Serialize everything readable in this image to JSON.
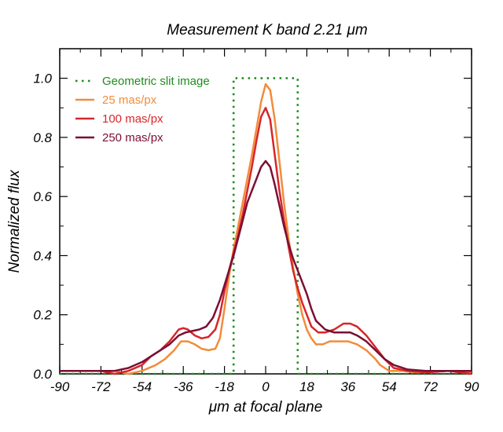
{
  "chart_data": {
    "type": "line",
    "title": "Measurement   K band    2.21 μm",
    "xlabel": "μm at focal plane",
    "ylabel": "Normalized flux",
    "xlim": [
      -90,
      90
    ],
    "ylim": [
      0,
      1.1
    ],
    "x_ticks": [
      -90,
      -72,
      -54,
      -36,
      -18,
      0,
      18,
      36,
      54,
      72,
      90
    ],
    "y_ticks": [
      0.0,
      0.2,
      0.4,
      0.6,
      0.8,
      1.0
    ],
    "x_tick_labels": [
      "-90",
      "-72",
      "-54",
      "-36",
      "-18",
      "0",
      "18",
      "36",
      "54",
      "72",
      "90"
    ],
    "y_tick_labels": [
      "0.0",
      "0.2",
      "0.4",
      "0.6",
      "0.8",
      "1.0"
    ],
    "legend_position": "top-left",
    "series": [
      {
        "name": "Geometric slit image",
        "color": "#1e8c1e",
        "style": "dotted",
        "x": [
          -90,
          -14,
          -14,
          14,
          14,
          90
        ],
        "y": [
          0,
          0,
          1.0,
          1.0,
          0,
          0
        ]
      },
      {
        "name": "25 mas/px",
        "color": "#f28c3a",
        "style": "solid",
        "x": [
          -90,
          -80,
          -72,
          -66,
          -60,
          -54,
          -48,
          -44,
          -40,
          -37,
          -34,
          -31,
          -28,
          -25,
          -22,
          -20,
          -18,
          -16,
          -14,
          -12,
          -10,
          -8,
          -6,
          -4,
          -2,
          0,
          2,
          4,
          6,
          8,
          10,
          12,
          14,
          16,
          18,
          20,
          22,
          25,
          28,
          31,
          34,
          36,
          40,
          44,
          48,
          50,
          54,
          60,
          66,
          72,
          80,
          90
        ],
        "y": [
          0.01,
          0.01,
          0.01,
          0.01,
          0.0,
          0.01,
          0.03,
          0.05,
          0.08,
          0.11,
          0.11,
          0.1,
          0.085,
          0.08,
          0.085,
          0.12,
          0.22,
          0.33,
          0.42,
          0.5,
          0.58,
          0.66,
          0.74,
          0.83,
          0.92,
          0.98,
          0.96,
          0.86,
          0.72,
          0.58,
          0.46,
          0.36,
          0.27,
          0.2,
          0.15,
          0.12,
          0.1,
          0.1,
          0.11,
          0.11,
          0.11,
          0.11,
          0.1,
          0.08,
          0.05,
          0.03,
          0.01,
          0.01,
          0.005,
          0.01,
          0.01,
          0.005
        ]
      },
      {
        "name": "100 mas/px",
        "color": "#d7262a",
        "style": "solid",
        "x": [
          -90,
          -80,
          -72,
          -66,
          -60,
          -54,
          -50,
          -46,
          -42,
          -38,
          -36,
          -34,
          -31,
          -28,
          -25,
          -22,
          -20,
          -18,
          -16,
          -14,
          -12,
          -10,
          -8,
          -6,
          -4,
          -2,
          0,
          2,
          4,
          6,
          8,
          10,
          12,
          14,
          16,
          18,
          20,
          23,
          26,
          30,
          34,
          37,
          40,
          44,
          48,
          52,
          56,
          62,
          70,
          80,
          90
        ],
        "y": [
          0.01,
          0.01,
          0.01,
          0.0,
          0.01,
          0.03,
          0.06,
          0.08,
          0.11,
          0.15,
          0.155,
          0.15,
          0.13,
          0.12,
          0.125,
          0.15,
          0.2,
          0.28,
          0.35,
          0.41,
          0.47,
          0.54,
          0.62,
          0.7,
          0.79,
          0.87,
          0.9,
          0.86,
          0.74,
          0.62,
          0.52,
          0.43,
          0.35,
          0.29,
          0.24,
          0.2,
          0.16,
          0.14,
          0.14,
          0.15,
          0.17,
          0.17,
          0.16,
          0.13,
          0.09,
          0.05,
          0.02,
          0.01,
          0.005,
          0.01,
          0.0
        ]
      },
      {
        "name": "250 mas/px",
        "color": "#7b0f33",
        "style": "solid",
        "x": [
          -90,
          -80,
          -72,
          -66,
          -60,
          -54,
          -50,
          -46,
          -42,
          -38,
          -35,
          -32,
          -29,
          -26,
          -23,
          -20,
          -18,
          -16,
          -14,
          -12,
          -10,
          -8,
          -6,
          -4,
          -2,
          0,
          2,
          4,
          6,
          8,
          10,
          12,
          14,
          16,
          18,
          20,
          22,
          26,
          30,
          34,
          37,
          40,
          44,
          48,
          52,
          56,
          62,
          70,
          80,
          90
        ],
        "y": [
          0.01,
          0.01,
          0.01,
          0.01,
          0.02,
          0.04,
          0.06,
          0.08,
          0.1,
          0.13,
          0.14,
          0.145,
          0.15,
          0.16,
          0.19,
          0.25,
          0.3,
          0.35,
          0.4,
          0.46,
          0.52,
          0.58,
          0.62,
          0.66,
          0.7,
          0.72,
          0.7,
          0.64,
          0.57,
          0.5,
          0.44,
          0.39,
          0.35,
          0.31,
          0.27,
          0.22,
          0.18,
          0.15,
          0.14,
          0.14,
          0.14,
          0.13,
          0.11,
          0.08,
          0.05,
          0.03,
          0.015,
          0.01,
          0.01,
          0.01
        ]
      }
    ]
  }
}
